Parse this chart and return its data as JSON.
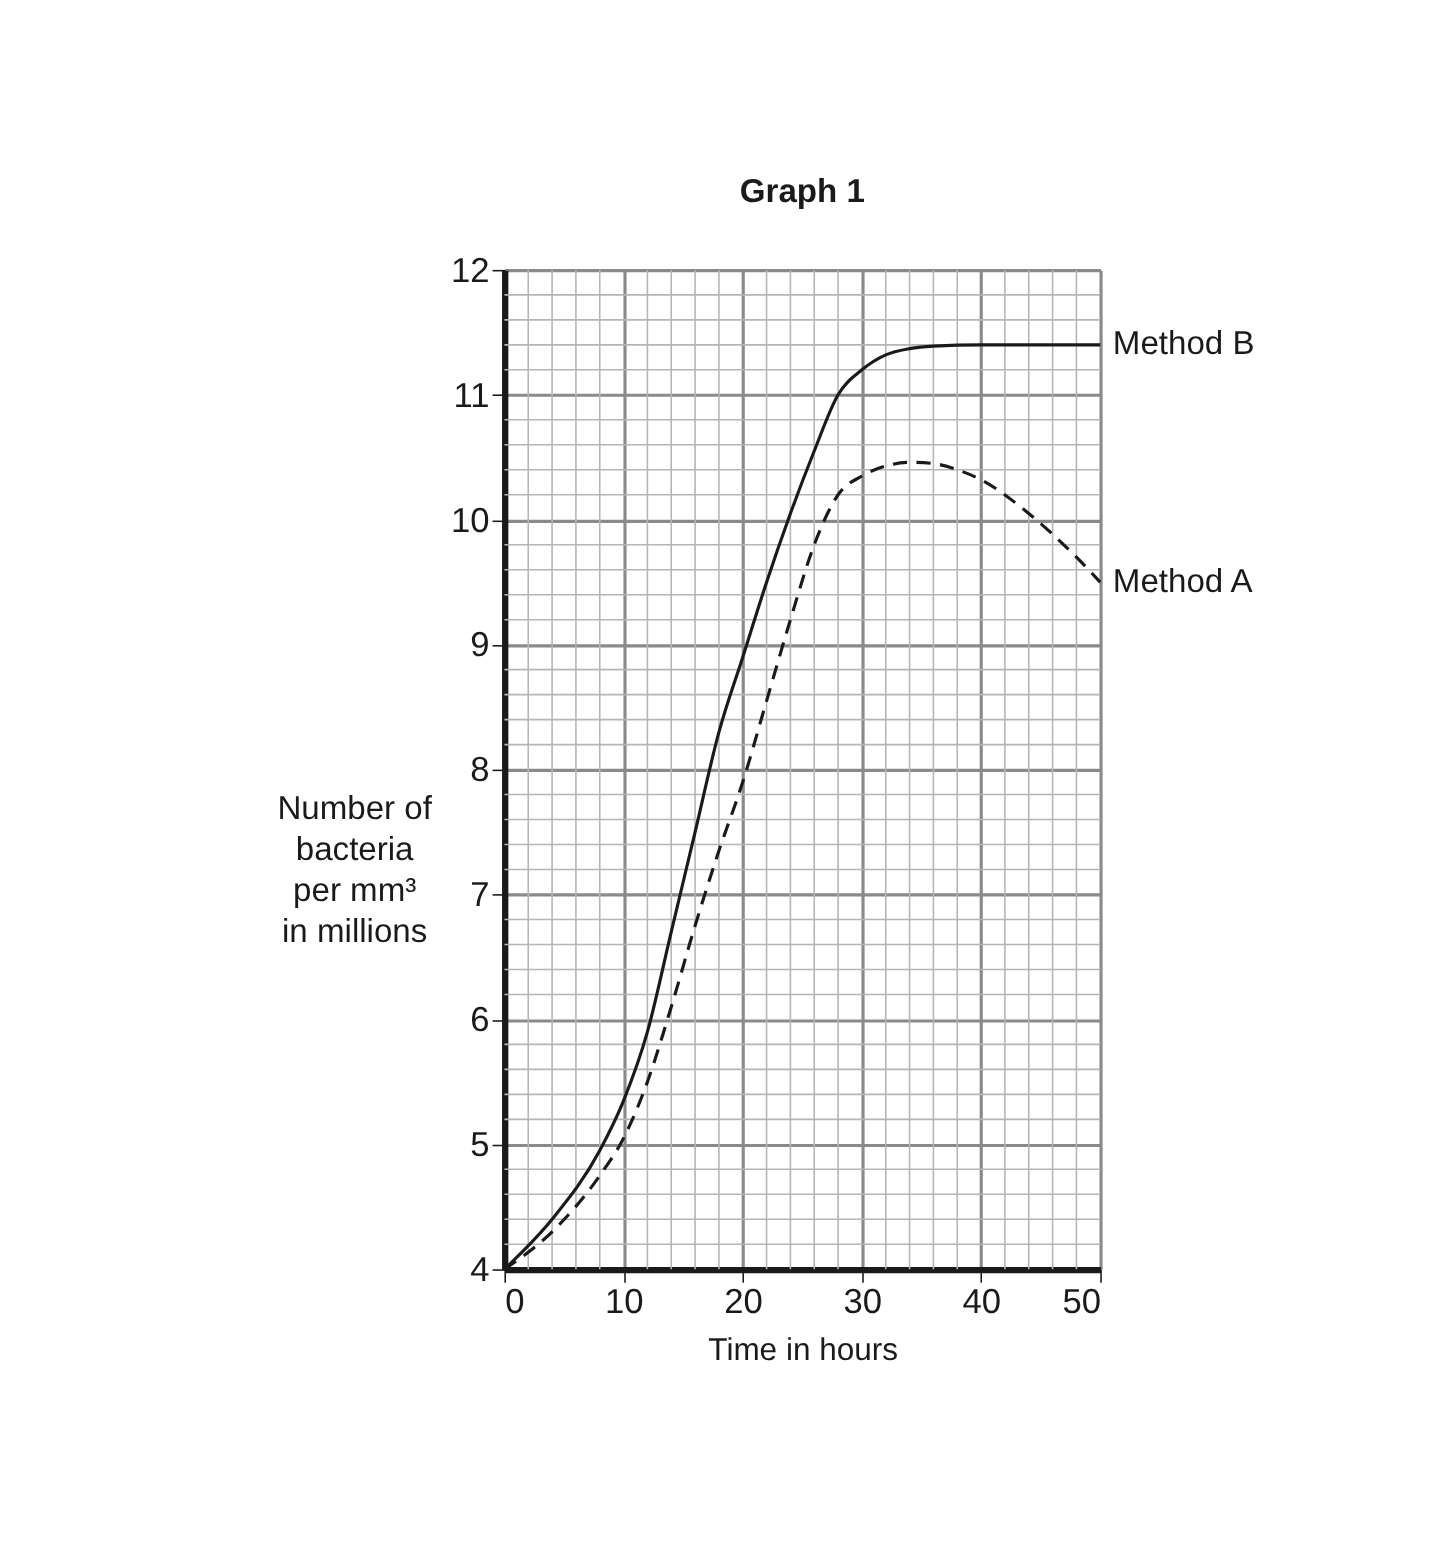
{
  "chart_data": {
    "type": "line",
    "title": "Graph 1",
    "xlabel": "Time in hours",
    "ylabel": "Number of\nbacteria\nper mm³\nin millions",
    "xlim": [
      0,
      50
    ],
    "ylim": [
      4,
      12
    ],
    "xticks": [
      0,
      10,
      20,
      30,
      40,
      50
    ],
    "yticks": [
      4,
      5,
      6,
      7,
      8,
      9,
      10,
      11,
      12
    ],
    "grid": true,
    "legend": false,
    "marker": "none",
    "series": [
      {
        "name": "Method B",
        "color": "#1a1a1a",
        "line_style": "solid",
        "x": [
          0,
          4,
          8,
          10,
          12,
          14,
          16,
          18,
          20,
          22,
          24,
          26,
          28,
          30,
          32,
          34,
          36,
          40,
          50
        ],
        "values": [
          4,
          4.4,
          4.95,
          5.35,
          5.9,
          6.7,
          7.5,
          8.3,
          8.9,
          9.5,
          10.05,
          10.55,
          11.0,
          11.2,
          11.32,
          11.37,
          11.39,
          11.4,
          11.4
        ]
      },
      {
        "name": "Method A",
        "color": "#1a1a1a",
        "line_style": "dashed",
        "x": [
          0,
          4,
          8,
          10,
          12,
          14,
          16,
          18,
          20,
          22,
          24,
          26,
          28,
          30,
          32,
          34,
          36,
          38,
          40,
          44,
          48,
          50
        ],
        "values": [
          4,
          4.3,
          4.75,
          5.05,
          5.5,
          6.1,
          6.75,
          7.35,
          7.9,
          8.55,
          9.2,
          9.8,
          10.2,
          10.35,
          10.43,
          10.46,
          10.45,
          10.4,
          10.32,
          10.05,
          9.7,
          9.5
        ]
      }
    ]
  }
}
